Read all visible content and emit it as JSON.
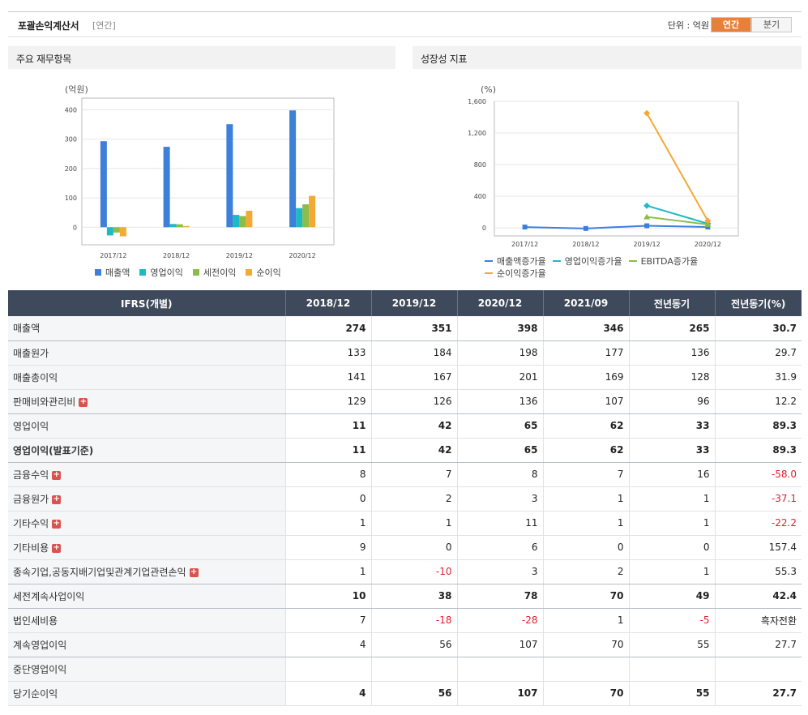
{
  "header": {
    "title": "포괄손익계산서",
    "period": "[연간]",
    "unit": "단위 : 억원",
    "tab_annual": "연간",
    "tab_quarter": "분기"
  },
  "panels": {
    "left_title": "주요 재무항목",
    "right_title": "성장성 지표"
  },
  "colors": {
    "sales": "#3d7fd9",
    "op": "#1fb8c6",
    "pretax": "#8bbd4b",
    "net": "#f4a935",
    "header_bg": "#3e4a5b",
    "negative": "#e0202e"
  },
  "chart_data": [
    {
      "type": "bar",
      "unit_label": "(억원)",
      "categories": [
        "2017/12",
        "2018/12",
        "2019/12",
        "2020/12"
      ],
      "ylim": [
        -60,
        440
      ],
      "yticks": [
        0,
        100,
        200,
        300,
        400
      ],
      "series": [
        {
          "name": "매출액",
          "values": [
            293,
            274,
            351,
            398
          ]
        },
        {
          "name": "영업이익",
          "values": [
            -28,
            11,
            42,
            65
          ]
        },
        {
          "name": "세전이익",
          "values": [
            -18,
            10,
            38,
            78
          ]
        },
        {
          "name": "순이익",
          "values": [
            -31,
            4,
            56,
            107
          ]
        }
      ],
      "legend": "bottom"
    },
    {
      "type": "line",
      "unit_label": "(%)",
      "categories": [
        "2017/12",
        "2018/12",
        "2019/12",
        "2020/12"
      ],
      "ylim": [
        -100,
        1600
      ],
      "yticks": [
        0,
        400,
        800,
        1200,
        1600
      ],
      "ytick_labels": [
        "0",
        "400",
        "800",
        "1,200",
        "1,600"
      ],
      "series": [
        {
          "name": "매출액증가율",
          "values": [
            12,
            -6,
            28,
            13
          ]
        },
        {
          "name": "영업이익증가율",
          "values": [
            null,
            null,
            282,
            55
          ]
        },
        {
          "name": "EBITDA증가율",
          "values": [
            null,
            null,
            140,
            45
          ]
        },
        {
          "name": "순이익증가율",
          "values": [
            null,
            null,
            1450,
            91
          ]
        }
      ],
      "legend": "bottom"
    }
  ],
  "table": {
    "columns": [
      "IFRS(개별)",
      "2018/12",
      "2019/12",
      "2020/12",
      "2021/09",
      "전년동기",
      "전년동기(%)"
    ],
    "rows": [
      {
        "label": "매출액",
        "values": [
          "274",
          "351",
          "398",
          "346",
          "265",
          "30.7"
        ]
      },
      {
        "label": "매출원가",
        "values": [
          "133",
          "184",
          "198",
          "177",
          "136",
          "29.7"
        ]
      },
      {
        "label": "매출총이익",
        "values": [
          "141",
          "167",
          "201",
          "169",
          "128",
          "31.9"
        ]
      },
      {
        "label": "판매비와관리비",
        "values": [
          "129",
          "126",
          "136",
          "107",
          "96",
          "12.2"
        ]
      },
      {
        "label": "영업이익",
        "values": [
          "11",
          "42",
          "65",
          "62",
          "33",
          "89.3"
        ]
      },
      {
        "label": "영업이익(발표기준)",
        "values": [
          "11",
          "42",
          "65",
          "62",
          "33",
          "89.3"
        ]
      },
      {
        "label": "금융수익",
        "values": [
          "8",
          "7",
          "8",
          "7",
          "16",
          "-58.0"
        ]
      },
      {
        "label": "금융원가",
        "values": [
          "0",
          "2",
          "3",
          "1",
          "1",
          "-37.1"
        ]
      },
      {
        "label": "기타수익",
        "values": [
          "1",
          "1",
          "11",
          "1",
          "1",
          "-22.2"
        ]
      },
      {
        "label": "기타비용",
        "values": [
          "9",
          "0",
          "6",
          "0",
          "0",
          "157.4"
        ]
      },
      {
        "label": "종속기업,공동지배기업및관계기업관련손익",
        "values": [
          "1",
          "-10",
          "3",
          "2",
          "1",
          "55.3"
        ]
      },
      {
        "label": "세전계속사업이익",
        "values": [
          "10",
          "38",
          "78",
          "70",
          "49",
          "42.4"
        ]
      },
      {
        "label": "법인세비용",
        "values": [
          "7",
          "-18",
          "-28",
          "1",
          "-5",
          "흑자전환"
        ]
      },
      {
        "label": "계속영업이익",
        "values": [
          "4",
          "56",
          "107",
          "70",
          "55",
          "27.7"
        ]
      },
      {
        "label": "중단영업이익",
        "values": [
          "",
          "",
          "",
          "",
          "",
          ""
        ]
      },
      {
        "label": "당기순이익",
        "values": [
          "4",
          "56",
          "107",
          "70",
          "55",
          "27.7"
        ]
      }
    ]
  }
}
